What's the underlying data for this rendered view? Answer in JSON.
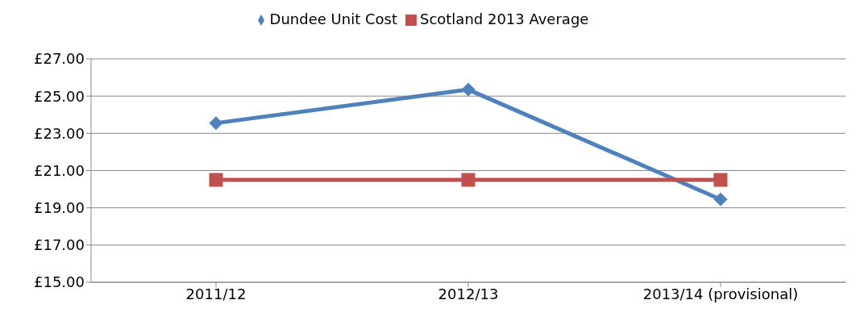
{
  "chart_data": {
    "type": "line",
    "categories": [
      "2011/12",
      "2012/13",
      "2013/14 (provisional)"
    ],
    "series": [
      {
        "name": "Dundee Unit Cost",
        "color": "#4f81bd",
        "marker": "diamond",
        "values": [
          23.55,
          25.35,
          19.45
        ]
      },
      {
        "name": "Scotland 2013 Average",
        "color": "#c0504d",
        "marker": "square",
        "values": [
          20.5,
          20.5,
          20.5
        ]
      }
    ],
    "ylim": [
      15,
      27
    ],
    "yticks": [
      {
        "value": 15,
        "label": "£15.00"
      },
      {
        "value": 17,
        "label": "£17.00"
      },
      {
        "value": 19,
        "label": "£19.00"
      },
      {
        "value": 21,
        "label": "£21.00"
      },
      {
        "value": 23,
        "label": "£23.00"
      },
      {
        "value": 25,
        "label": "£25.00"
      },
      {
        "value": 27,
        "label": "£27.00"
      }
    ],
    "grid": "y",
    "legend": "top"
  }
}
